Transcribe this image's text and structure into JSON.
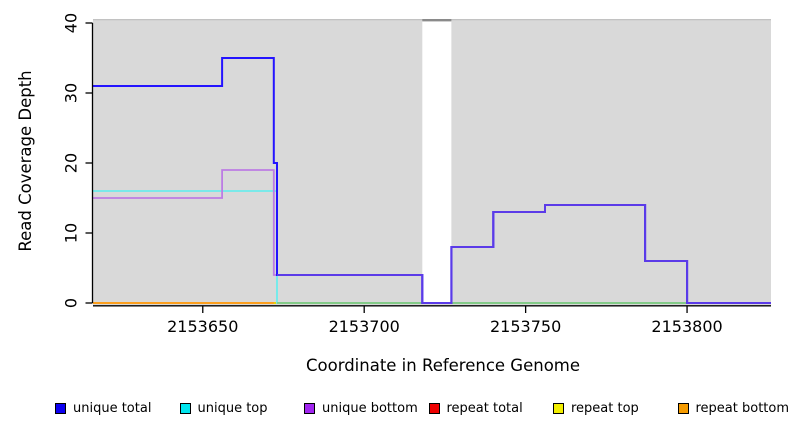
{
  "chart_data": {
    "type": "line",
    "subtype": "step",
    "title": "",
    "xlabel": "Coordinate in Reference Genome",
    "ylabel": "Read Coverage Depth",
    "xlim": [
      2153616,
      2153826
    ],
    "ylim": [
      0,
      40
    ],
    "x_ticks": [
      2153650,
      2153700,
      2153750,
      2153800
    ],
    "y_ticks": [
      0,
      10,
      20,
      30,
      40
    ],
    "grid": false,
    "plot_background": "#d9d9d9",
    "plot_top_edge_color": "#c2c2c2",
    "legend_position": "bottom",
    "masked_region": {
      "x_start": 2153718,
      "x_end": 2153727,
      "fill": "#ffffff",
      "cap_color": "#8a8a8a"
    },
    "series": [
      {
        "name": "unique total",
        "legend_color": "#0d00f2",
        "line_color": "#2414ff",
        "line_width": 2,
        "points": [
          [
            2153616,
            31
          ],
          [
            2153656,
            31
          ],
          [
            2153656,
            35
          ],
          [
            2153672,
            35
          ],
          [
            2153672,
            20
          ],
          [
            2153673,
            20
          ],
          [
            2153673,
            4
          ],
          [
            2153718,
            4
          ],
          [
            2153718,
            0
          ],
          [
            2153727,
            0
          ],
          [
            2153727,
            8
          ],
          [
            2153740,
            8
          ],
          [
            2153740,
            13
          ],
          [
            2153756,
            13
          ],
          [
            2153756,
            14
          ],
          [
            2153787,
            14
          ],
          [
            2153787,
            6
          ],
          [
            2153800,
            6
          ],
          [
            2153800,
            0
          ],
          [
            2153826,
            0
          ]
        ]
      },
      {
        "name": "unique top",
        "legend_color": "#00e5ee",
        "line_color": "#6cebeb",
        "line_width": 1.8,
        "points": [
          [
            2153616,
            16
          ],
          [
            2153673,
            16
          ],
          [
            2153673,
            0
          ],
          [
            2153826,
            0
          ]
        ]
      },
      {
        "name": "unique bottom",
        "legend_color": "#a125f0",
        "line_color": "#bc7ce4",
        "line_width": 1.8,
        "points": [
          [
            2153616,
            15
          ],
          [
            2153656,
            15
          ],
          [
            2153656,
            19
          ],
          [
            2153672,
            19
          ],
          [
            2153672,
            4
          ],
          [
            2153718,
            4
          ],
          [
            2153718,
            0
          ],
          [
            2153727,
            0
          ],
          [
            2153727,
            8
          ],
          [
            2153740,
            8
          ],
          [
            2153740,
            13
          ],
          [
            2153756,
            13
          ],
          [
            2153756,
            14
          ],
          [
            2153787,
            14
          ],
          [
            2153787,
            6
          ],
          [
            2153800,
            6
          ],
          [
            2153800,
            0
          ],
          [
            2153826,
            0
          ]
        ]
      },
      {
        "name": "repeat total",
        "legend_color": "#ee0000",
        "line_color": "#dd0000",
        "line_width": 1.8,
        "points": [
          [
            2153616,
            0
          ],
          [
            2153826,
            0
          ]
        ]
      },
      {
        "name": "repeat top",
        "legend_color": "#f2ee00",
        "line_color": "#e8e800",
        "line_width": 1.8,
        "points": [
          [
            2153616,
            0
          ],
          [
            2153826,
            0
          ]
        ]
      },
      {
        "name": "repeat bottom",
        "legend_color": "#f59b00",
        "line_color": "#ff9b21",
        "line_width": 1.8,
        "points": [
          [
            2153616,
            0
          ],
          [
            2153672,
            0
          ]
        ]
      }
    ],
    "blend_lines": [
      {
        "note": "unique-top + repeat-top overlap at zero",
        "color": "#82c882",
        "line_width": 1.8,
        "points": [
          [
            2153673,
            0
          ],
          [
            2153826,
            0
          ]
        ]
      }
    ],
    "overlap_overdraw": {
      "series": "unique total",
      "from_x": 2153673,
      "color": "#5b3be8",
      "line_width": 2
    }
  },
  "legend": {
    "items": [
      {
        "label": "unique total",
        "color": "#0d00f2"
      },
      {
        "label": "unique top",
        "color": "#00e5ee"
      },
      {
        "label": "unique bottom",
        "color": "#a125f0"
      },
      {
        "label": "repeat total",
        "color": "#ee0000"
      },
      {
        "label": "repeat top",
        "color": "#f2ee00"
      },
      {
        "label": "repeat bottom",
        "color": "#f59b00"
      }
    ]
  }
}
